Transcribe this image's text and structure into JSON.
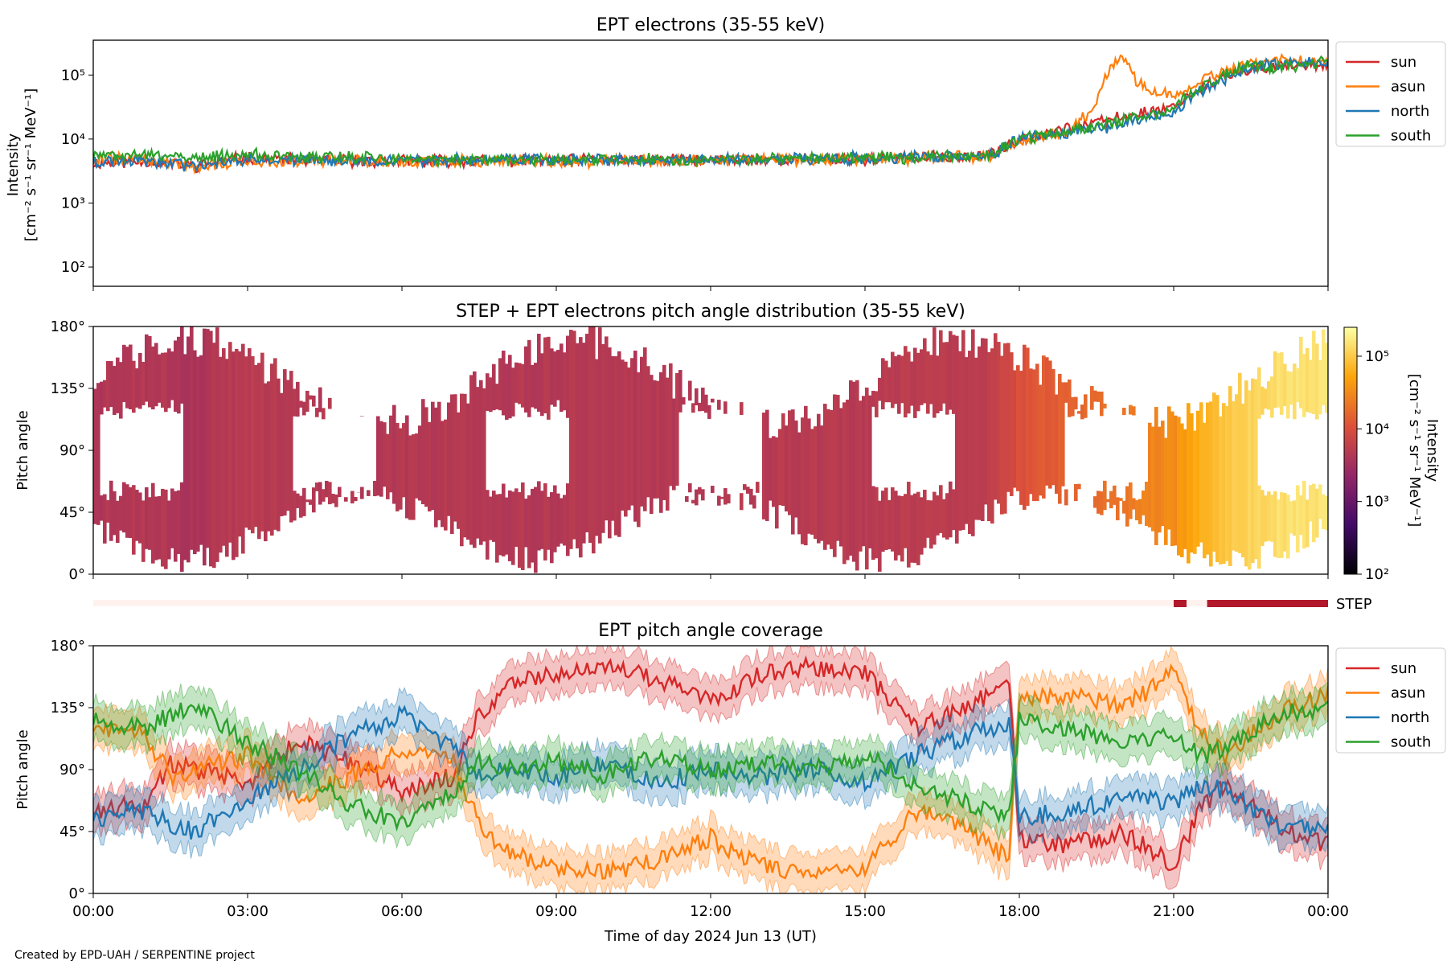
{
  "chart_data": [
    {
      "type": "line",
      "title": "EPT electrons (35-55 keV)",
      "ylabel_line1": "Intensity",
      "ylabel_line2": "[cm⁻² s⁻¹ sr⁻¹ MeV⁻¹]",
      "yscale": "log",
      "ylim": [
        50,
        350000
      ],
      "yticks": [
        {
          "value": 100,
          "label": "10²"
        },
        {
          "value": 1000,
          "label": "10³"
        },
        {
          "value": 10000,
          "label": "10⁴"
        },
        {
          "value": 100000,
          "label": "10⁵"
        }
      ],
      "xlim_hours": [
        0,
        24
      ],
      "legend": "outside-right",
      "series": [
        {
          "name": "sun",
          "color": "#d62728",
          "x": [
            0,
            1,
            2,
            3,
            4,
            6,
            9,
            12,
            15,
            17,
            17.5,
            18,
            19,
            19.5,
            20,
            21,
            21.5,
            22,
            22.5,
            23,
            24
          ],
          "y": [
            4200,
            4500,
            3800,
            5200,
            4600,
            4500,
            4600,
            4700,
            4900,
            5300,
            5600,
            10000,
            15000,
            18000,
            22000,
            32000,
            60000,
            90000,
            115000,
            140000,
            150000
          ]
        },
        {
          "name": "asun",
          "color": "#ff7f0e",
          "x": [
            0,
            1,
            2,
            3,
            4,
            6,
            9,
            12,
            15,
            17,
            17.5,
            18,
            19,
            19.5,
            19.8,
            20,
            20.3,
            20.6,
            21,
            21.5,
            22,
            22.5,
            23,
            24
          ],
          "y": [
            5000,
            4800,
            3600,
            4600,
            4500,
            4400,
            4500,
            4600,
            4800,
            5200,
            5500,
            9500,
            13000,
            30000,
            150000,
            200000,
            70000,
            60000,
            45000,
            80000,
            120000,
            160000,
            170000,
            170000
          ]
        },
        {
          "name": "north",
          "color": "#1f77b4",
          "x": [
            0,
            1,
            2,
            3,
            4,
            6,
            9,
            12,
            15,
            17,
            17.5,
            18,
            19,
            19.5,
            20,
            21,
            21.5,
            22,
            22.5,
            23,
            24
          ],
          "y": [
            4400,
            4600,
            3700,
            5000,
            4700,
            4600,
            4700,
            4800,
            5000,
            5400,
            5700,
            9800,
            13000,
            14000,
            18000,
            26000,
            55000,
            85000,
            130000,
            150000,
            160000
          ]
        },
        {
          "name": "south",
          "color": "#2ca02c",
          "x": [
            0,
            1,
            2,
            3,
            4,
            6,
            9,
            12,
            15,
            17,
            17.5,
            18,
            19,
            19.5,
            20,
            21,
            21.5,
            22,
            22.5,
            23,
            24
          ],
          "y": [
            5500,
            5600,
            5200,
            5600,
            5300,
            4800,
            4700,
            4800,
            5000,
            5400,
            5600,
            10000,
            13500,
            15000,
            19000,
            28000,
            60000,
            100000,
            140000,
            130000,
            160000
          ]
        }
      ]
    },
    {
      "type": "heatmap",
      "title": "STEP + EPT electrons pitch angle distribution (35-55 keV)",
      "ylabel": "Pitch angle",
      "ylim": [
        0,
        180
      ],
      "yticks": [
        "0°",
        "45°",
        "90°",
        "135°",
        "180°"
      ],
      "xlim_hours": [
        0,
        24
      ],
      "colorbar": {
        "label_line1": "Intensity",
        "label_line2": "[cm⁻² s⁻¹ sr⁻¹ MeV⁻¹]",
        "scale": "log",
        "range": [
          100,
          250000
        ],
        "ticks": [
          {
            "value": 100,
            "label": "10²"
          },
          {
            "value": 1000,
            "label": "10³"
          },
          {
            "value": 10000,
            "label": "10⁴"
          },
          {
            "value": 100000,
            "label": "10⁵"
          }
        ],
        "colormap": "inferno"
      }
    },
    {
      "type": "bar",
      "label": "STEP",
      "color": "#b2182b",
      "intervals_hours": [
        [
          21.0,
          21.25
        ],
        [
          21.65,
          24.0
        ]
      ]
    },
    {
      "type": "area",
      "title": "EPT pitch angle coverage",
      "ylabel": "Pitch angle",
      "xlabel": "Time of day 2024 Jun 13 (UT)",
      "ylim": [
        0,
        180
      ],
      "yticks": [
        "0°",
        "45°",
        "90°",
        "135°",
        "180°"
      ],
      "xticks": [
        "00:00",
        "03:00",
        "06:00",
        "09:00",
        "12:00",
        "15:00",
        "18:00",
        "21:00",
        "00:00"
      ],
      "xlim_hours": [
        0,
        24
      ],
      "legend": "outside-right",
      "series": [
        {
          "name": "sun",
          "color": "#d62728",
          "x": [
            0,
            1,
            1.5,
            2,
            3,
            4,
            5,
            6,
            7,
            7.5,
            8,
            9,
            10,
            11,
            12,
            13,
            14,
            15,
            15.5,
            16,
            17,
            17.8,
            18,
            19,
            20,
            21,
            21.5,
            22,
            23,
            24
          ],
          "y": [
            60,
            65,
            95,
            90,
            80,
            110,
            95,
            75,
            85,
            130,
            150,
            160,
            165,
            155,
            140,
            160,
            165,
            160,
            140,
            120,
            135,
            155,
            40,
            35,
            45,
            20,
            60,
            80,
            50,
            35
          ]
        },
        {
          "name": "asun",
          "color": "#ff7f0e",
          "x": [
            0,
            1,
            1.5,
            2,
            3,
            4,
            5,
            6,
            7,
            7.5,
            8,
            9,
            10,
            11,
            12,
            13,
            14,
            15,
            15.5,
            16,
            17,
            17.8,
            18,
            19,
            20,
            21,
            21.5,
            22,
            23,
            24
          ],
          "y": [
            120,
            115,
            85,
            90,
            100,
            70,
            85,
            105,
            95,
            50,
            30,
            20,
            15,
            25,
            40,
            20,
            15,
            20,
            40,
            60,
            45,
            25,
            140,
            145,
            135,
            160,
            120,
            100,
            130,
            145
          ]
        },
        {
          "name": "north",
          "color": "#1f77b4",
          "x": [
            0,
            1,
            1.5,
            2,
            3,
            4,
            5,
            6,
            7,
            7.5,
            8,
            9,
            10,
            11,
            12,
            13,
            14,
            15,
            15.5,
            16,
            17,
            17.8,
            18,
            19,
            20,
            21,
            21.5,
            22,
            23,
            24
          ],
          "y": [
            55,
            60,
            50,
            45,
            70,
            90,
            115,
            130,
            105,
            85,
            90,
            85,
            95,
            80,
            90,
            85,
            90,
            80,
            90,
            100,
            115,
            125,
            55,
            60,
            70,
            65,
            80,
            75,
            50,
            45
          ]
        },
        {
          "name": "south",
          "color": "#2ca02c",
          "x": [
            0,
            1,
            1.5,
            2,
            3,
            4,
            5,
            6,
            7,
            7.5,
            8,
            9,
            10,
            11,
            12,
            13,
            14,
            15,
            15.5,
            16,
            17,
            17.8,
            18,
            19,
            20,
            21,
            21.5,
            22,
            23,
            24
          ],
          "y": [
            125,
            120,
            130,
            135,
            110,
            90,
            65,
            50,
            75,
            95,
            90,
            95,
            85,
            100,
            90,
            95,
            90,
            100,
            90,
            80,
            65,
            55,
            125,
            120,
            110,
            115,
            100,
            105,
            130,
            135
          ]
        }
      ]
    }
  ],
  "footer": {
    "credit": "Created by EPD-UAH / SERPENTINE project"
  }
}
